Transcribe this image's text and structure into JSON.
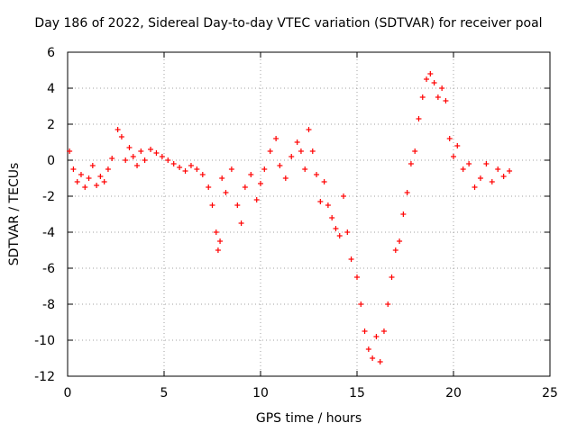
{
  "chart_data": {
    "type": "scatter",
    "title": "Day 186 of 2022, Sidereal Day-to-day VTEC variation (SDTVAR) for receiver poal",
    "xlabel": "GPS time / hours",
    "ylabel": "SDTVAR / TECUs",
    "xlim": [
      0,
      25
    ],
    "ylim": [
      -12,
      6
    ],
    "xticks": [
      0,
      5,
      10,
      15,
      20,
      25
    ],
    "yticks": [
      -12,
      -10,
      -8,
      -6,
      -4,
      -2,
      0,
      2,
      4,
      6
    ],
    "grid": true,
    "marker": "+",
    "color": "#ff0000",
    "series": [
      {
        "name": "SDTVAR",
        "x": [
          0.1,
          0.3,
          0.5,
          0.7,
          0.9,
          1.1,
          1.3,
          1.5,
          1.7,
          1.9,
          2.1,
          2.3,
          2.6,
          2.8,
          3.0,
          3.2,
          3.4,
          3.6,
          3.8,
          4.0,
          4.3,
          4.6,
          4.9,
          5.2,
          5.5,
          5.8,
          6.1,
          6.4,
          6.7,
          7.0,
          7.3,
          7.5,
          7.7,
          7.8,
          7.9,
          8.0,
          8.2,
          8.5,
          8.8,
          9.0,
          9.2,
          9.5,
          9.8,
          10.0,
          10.2,
          10.5,
          10.8,
          11.0,
          11.3,
          11.6,
          11.9,
          12.1,
          12.3,
          12.5,
          12.7,
          12.9,
          13.1,
          13.3,
          13.5,
          13.7,
          13.9,
          14.1,
          14.3,
          14.5,
          14.7,
          15.0,
          15.2,
          15.4,
          15.6,
          15.8,
          16.0,
          16.2,
          16.4,
          16.6,
          16.8,
          17.0,
          17.2,
          17.4,
          17.6,
          17.8,
          18.0,
          18.2,
          18.4,
          18.6,
          18.8,
          19.0,
          19.2,
          19.4,
          19.6,
          19.8,
          20.0,
          20.2,
          20.5,
          20.8,
          21.1,
          21.4,
          21.7,
          22.0,
          22.3,
          22.6,
          22.9
        ],
        "y": [
          0.5,
          -0.5,
          -1.2,
          -0.8,
          -1.5,
          -1.0,
          -0.3,
          -1.4,
          -0.9,
          -1.2,
          -0.5,
          0.1,
          1.7,
          1.3,
          0.0,
          0.7,
          0.2,
          -0.3,
          0.5,
          0.0,
          0.6,
          0.4,
          0.2,
          0.0,
          -0.2,
          -0.4,
          -0.6,
          -0.3,
          -0.5,
          -0.8,
          -1.5,
          -2.5,
          -4.0,
          -5.0,
          -4.5,
          -1.0,
          -1.8,
          -0.5,
          -2.5,
          -3.5,
          -1.5,
          -0.8,
          -2.2,
          -1.3,
          -0.5,
          0.5,
          1.2,
          -0.3,
          -1.0,
          0.2,
          1.0,
          0.5,
          -0.5,
          1.7,
          0.5,
          -0.8,
          -2.3,
          -1.2,
          -2.5,
          -3.2,
          -3.8,
          -4.2,
          -2.0,
          -4.0,
          -5.5,
          -6.5,
          -8.0,
          -9.5,
          -10.5,
          -11.0,
          -9.8,
          -11.2,
          -9.5,
          -8.0,
          -6.5,
          -5.0,
          -4.5,
          -3.0,
          -1.8,
          -0.2,
          0.5,
          2.3,
          3.5,
          4.5,
          4.8,
          4.3,
          3.5,
          4.0,
          3.3,
          1.2,
          0.2,
          0.8,
          -0.5,
          -0.2,
          -1.5,
          -1.0,
          -0.2,
          -1.2,
          -0.5,
          -0.9,
          -0.6
        ]
      }
    ]
  }
}
